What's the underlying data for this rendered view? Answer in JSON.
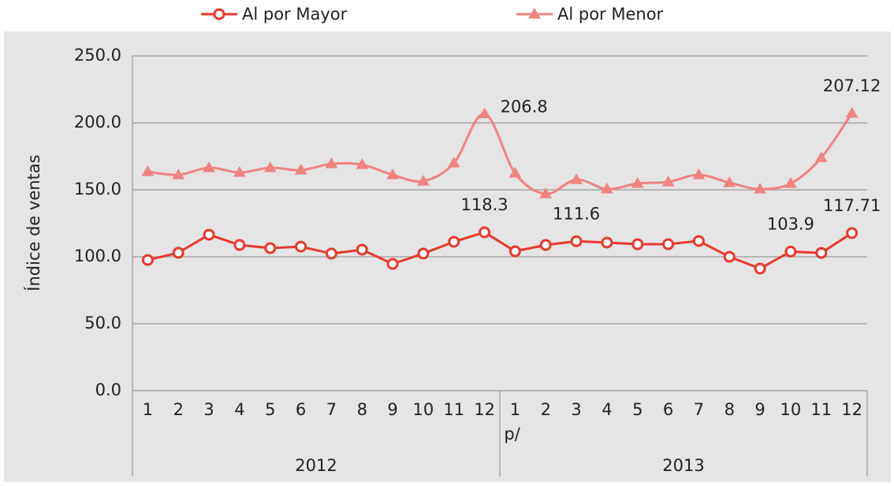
{
  "chart_data": {
    "type": "line",
    "y_label": "Índice de ventas",
    "categories": [
      "1",
      "2",
      "3",
      "4",
      "5",
      "6",
      "7",
      "8",
      "9",
      "10",
      "11",
      "12",
      "1",
      "2",
      "3",
      "4",
      "5",
      "6",
      "7",
      "8",
      "9",
      "10",
      "11",
      "12"
    ],
    "category_note": "p/",
    "groups": [
      "2012",
      "2013"
    ],
    "ylim": [
      0,
      250
    ],
    "yticks": [
      {
        "value": 0,
        "label": "0.0"
      },
      {
        "value": 50,
        "label": "50.0"
      },
      {
        "value": 100,
        "label": "100.0"
      },
      {
        "value": 150,
        "label": "150.0"
      },
      {
        "value": 200,
        "label": "200.0"
      },
      {
        "value": 250,
        "label": "250.0"
      }
    ],
    "grid": true,
    "series": [
      {
        "name": "Al por Mayor",
        "color": "#e8392f",
        "marker": "circle",
        "smooth": false,
        "values": [
          97.6,
          103,
          116.5,
          108.8,
          106.5,
          107.6,
          102.4,
          105.3,
          94.7,
          102.4,
          111.2,
          118.3,
          104.1,
          108.8,
          111.6,
          110.6,
          109.4,
          109.4,
          111.8,
          100,
          91.2,
          103.9,
          102.9,
          117.71
        ],
        "value_labels": [
          null,
          null,
          null,
          null,
          null,
          null,
          null,
          null,
          null,
          null,
          null,
          "118.3",
          null,
          null,
          "111.6",
          null,
          null,
          null,
          null,
          null,
          null,
          "103.9",
          null,
          "117.71"
        ]
      },
      {
        "name": "Al por Menor",
        "color": "#f08282",
        "marker": "triangle",
        "smooth": true,
        "values": [
          163.5,
          161.2,
          166.5,
          163,
          166.5,
          164.7,
          169.4,
          168.8,
          161.2,
          156.5,
          170,
          206.8,
          162.4,
          147,
          157.6,
          150.6,
          154.7,
          155.9,
          161.2,
          155.3,
          150.6,
          154.7,
          174,
          207.12
        ],
        "value_labels": [
          null,
          null,
          null,
          null,
          null,
          null,
          null,
          null,
          null,
          null,
          null,
          "206.8",
          null,
          null,
          null,
          null,
          null,
          null,
          null,
          null,
          null,
          null,
          null,
          "207.12"
        ]
      }
    ]
  }
}
